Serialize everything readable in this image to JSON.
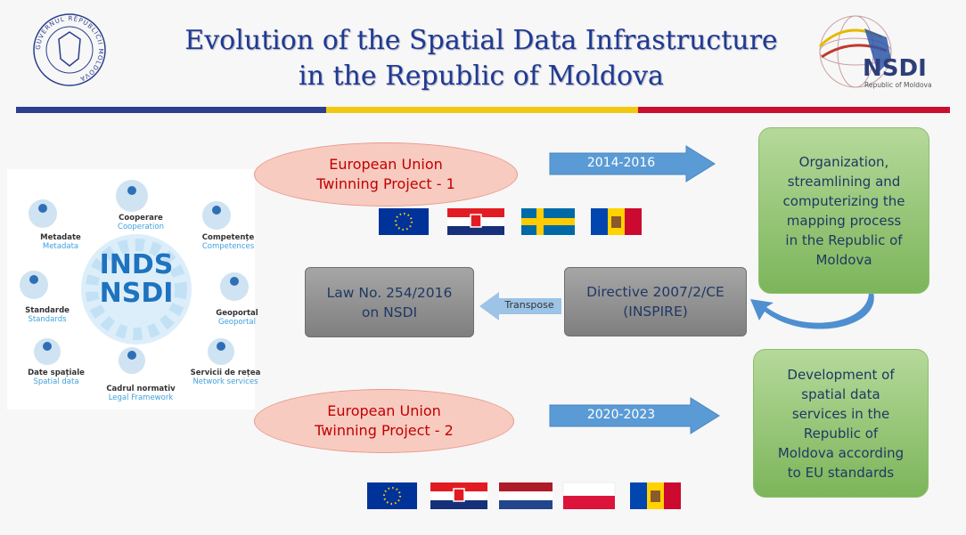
{
  "header": {
    "title_lines": [
      "Evolution of the Spatial Data Infrastructure",
      "in the  Republic of Moldova"
    ],
    "left_logo_text": "GUVERNUL REPUBLICII MOLDOVA",
    "right_logo": {
      "name": "NSDI",
      "subtitle": "Republic of Moldova"
    }
  },
  "infographic": {
    "center": [
      "INDS",
      "NSDI"
    ],
    "items": [
      {
        "ro": "Metadate",
        "en": "Metadata"
      },
      {
        "ro": "Cooperare",
        "en": "Cooperation"
      },
      {
        "ro": "Competențe",
        "en": "Competences"
      },
      {
        "ro": "Standarde",
        "en": "Standards"
      },
      {
        "ro": "Geoportal",
        "en": "Geoportal"
      },
      {
        "ro": "Date spațiale",
        "en": "Spatial data"
      },
      {
        "ro": "Cadrul normativ",
        "en": "Legal Framework"
      },
      {
        "ro": "Servicii de rețea",
        "en": "Network services"
      }
    ]
  },
  "projects": [
    {
      "label_lines": [
        "European Union",
        "Twinning Project - 1"
      ],
      "period": "2014-2016"
    },
    {
      "label_lines": [
        "European Union",
        "Twinning Project - 2"
      ],
      "period": "2020-2023"
    }
  ],
  "outcomes": [
    {
      "lines": [
        "Organization,",
        "streamlining and",
        "computerizing the",
        "mapping process",
        "in the Republic of",
        "Moldova"
      ]
    },
    {
      "lines": [
        "Development of",
        "spatial data",
        "services in the",
        "Republic of",
        "Moldova according",
        "to EU standards"
      ]
    }
  ],
  "directive": {
    "lines": [
      "Directive 2007/2/CE",
      "(INSPIRE)"
    ]
  },
  "transpose": "Transpose",
  "law": {
    "lines": [
      "Law No. 254/2016",
      "on NSDI"
    ]
  }
}
